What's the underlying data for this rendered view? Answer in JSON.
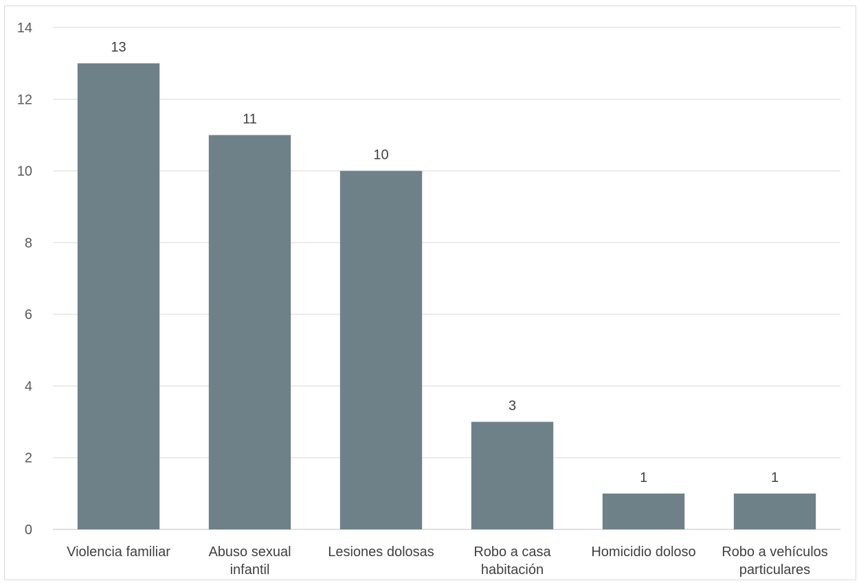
{
  "chart_data": {
    "type": "bar",
    "title": "",
    "xlabel": "",
    "ylabel": "",
    "ylim": [
      0,
      14
    ],
    "yticks": [
      0,
      2,
      4,
      6,
      8,
      10,
      12,
      14
    ],
    "grid": true,
    "legend": "none",
    "categories": [
      [
        "Violencia familiar"
      ],
      [
        "Abuso sexual",
        "infantil"
      ],
      [
        "Lesiones dolosas"
      ],
      [
        "Robo a casa",
        "habitación"
      ],
      [
        "Homicidio doloso"
      ],
      [
        "Robo a vehículos",
        "particulares"
      ]
    ],
    "values": [
      13,
      11,
      10,
      3,
      1,
      1
    ],
    "data_labels": [
      "13",
      "11",
      "10",
      "3",
      "1",
      "1"
    ],
    "bar_color": "#6f8188",
    "grid_color": "#d9d9d9",
    "axis_color": "#bfbfbf"
  }
}
